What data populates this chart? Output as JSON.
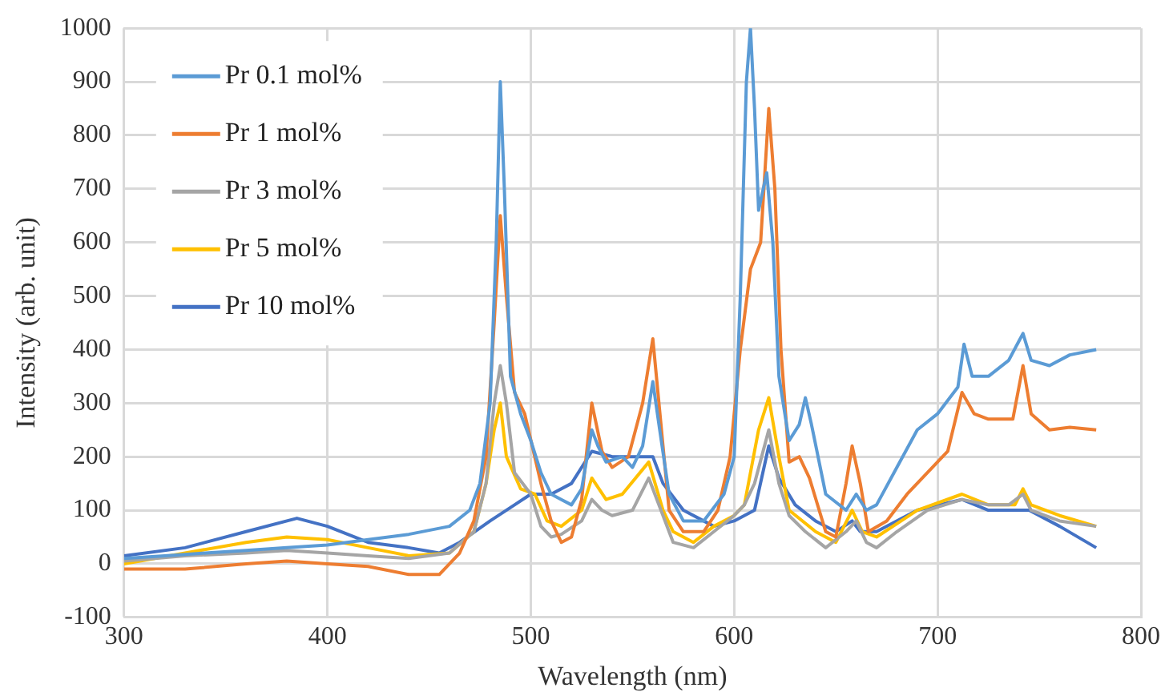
{
  "chart_data": {
    "type": "line",
    "xlabel": "Wavelength (nm)",
    "ylabel": "Intensity (arb. unit)",
    "xlim": [
      300,
      800
    ],
    "xticks": [
      300,
      400,
      500,
      600,
      700,
      800
    ],
    "ylim": [
      -100,
      1000
    ],
    "yticks": [
      -100,
      0,
      100,
      200,
      300,
      400,
      500,
      600,
      700,
      800,
      900,
      1000
    ],
    "grid": true,
    "legend": "top left",
    "marker": "none",
    "line_style": "solid",
    "series": [
      {
        "name": "Pr 0.1 mol%",
        "color": "#5b9bd5",
        "x": [
          300,
          320,
          340,
          360,
          380,
          400,
          420,
          440,
          460,
          470,
          475,
          480,
          483,
          485,
          487,
          490,
          495,
          500,
          505,
          510,
          515,
          520,
          525,
          530,
          533,
          537,
          545,
          550,
          555,
          560,
          563,
          568,
          575,
          585,
          595,
          600,
          603,
          606,
          608,
          610,
          612,
          616,
          619,
          622,
          627,
          632,
          635,
          638,
          645,
          655,
          660,
          665,
          670,
          680,
          690,
          700,
          710,
          713,
          717,
          725,
          735,
          742,
          746,
          755,
          765,
          778
        ],
        "values": [
          10,
          15,
          20,
          25,
          30,
          35,
          45,
          55,
          70,
          100,
          150,
          300,
          600,
          900,
          700,
          350,
          280,
          230,
          170,
          130,
          120,
          110,
          140,
          250,
          220,
          190,
          200,
          180,
          220,
          340,
          260,
          130,
          80,
          80,
          130,
          200,
          500,
          900,
          1000,
          850,
          660,
          730,
          600,
          350,
          230,
          260,
          310,
          260,
          130,
          100,
          130,
          100,
          110,
          180,
          250,
          280,
          330,
          410,
          350,
          350,
          380,
          430,
          380,
          370,
          390,
          400
        ]
      },
      {
        "name": "Pr 1 mol%",
        "color": "#ed7d31",
        "x": [
          300,
          330,
          360,
          380,
          400,
          420,
          440,
          455,
          465,
          472,
          478,
          482,
          485,
          488,
          492,
          497,
          505,
          510,
          515,
          520,
          525,
          530,
          535,
          540,
          548,
          555,
          560,
          563,
          568,
          575,
          585,
          592,
          598,
          603,
          608,
          613,
          617,
          620,
          623,
          627,
          632,
          637,
          645,
          650,
          655,
          658,
          662,
          666,
          675,
          685,
          695,
          705,
          712,
          718,
          725,
          737,
          742,
          746,
          755,
          765,
          778
        ],
        "values": [
          -10,
          -10,
          0,
          5,
          0,
          -5,
          -20,
          -20,
          20,
          80,
          200,
          450,
          650,
          500,
          320,
          280,
          150,
          80,
          40,
          50,
          120,
          300,
          210,
          180,
          200,
          300,
          420,
          300,
          100,
          60,
          60,
          100,
          200,
          400,
          550,
          600,
          850,
          700,
          400,
          190,
          200,
          160,
          60,
          50,
          150,
          220,
          150,
          60,
          80,
          130,
          170,
          210,
          320,
          280,
          270,
          270,
          370,
          280,
          250,
          255,
          250
        ]
      },
      {
        "name": "Pr 3 mol%",
        "color": "#a5a5a5",
        "x": [
          300,
          330,
          360,
          380,
          400,
          420,
          440,
          460,
          472,
          478,
          482,
          485,
          488,
          492,
          500,
          505,
          510,
          515,
          525,
          530,
          535,
          540,
          550,
          558,
          565,
          570,
          580,
          590,
          600,
          605,
          610,
          617,
          622,
          627,
          635,
          645,
          655,
          660,
          665,
          670,
          680,
          695,
          712,
          725,
          735,
          742,
          746,
          760,
          778
        ],
        "values": [
          5,
          15,
          20,
          25,
          20,
          15,
          10,
          20,
          60,
          150,
          300,
          370,
          300,
          170,
          130,
          70,
          50,
          55,
          80,
          120,
          100,
          90,
          100,
          160,
          90,
          40,
          30,
          60,
          90,
          110,
          150,
          250,
          150,
          90,
          60,
          30,
          60,
          80,
          40,
          30,
          60,
          100,
          120,
          110,
          110,
          130,
          100,
          80,
          70
        ]
      },
      {
        "name": "Pr 5 mol%",
        "color": "#ffc000",
        "x": [
          300,
          330,
          360,
          380,
          400,
          420,
          440,
          460,
          472,
          478,
          482,
          485,
          488,
          495,
          502,
          508,
          515,
          525,
          530,
          537,
          545,
          558,
          565,
          570,
          580,
          590,
          600,
          605,
          612,
          617,
          622,
          627,
          640,
          650,
          658,
          663,
          670,
          690,
          712,
          725,
          738,
          742,
          746,
          760,
          778
        ],
        "values": [
          0,
          20,
          40,
          50,
          45,
          30,
          15,
          20,
          60,
          150,
          250,
          300,
          200,
          140,
          130,
          80,
          70,
          100,
          160,
          120,
          130,
          190,
          100,
          60,
          40,
          70,
          90,
          110,
          250,
          310,
          200,
          100,
          60,
          40,
          100,
          60,
          50,
          100,
          130,
          110,
          110,
          140,
          110,
          90,
          70
        ]
      },
      {
        "name": "Pr 10 mol%",
        "color": "#4472c4",
        "x": [
          300,
          330,
          360,
          385,
          400,
          420,
          440,
          455,
          465,
          480,
          492,
          500,
          510,
          520,
          530,
          540,
          550,
          560,
          565,
          575,
          590,
          600,
          610,
          617,
          622,
          630,
          640,
          650,
          658,
          662,
          670,
          690,
          712,
          725,
          740,
          745,
          760,
          778
        ],
        "values": [
          15,
          30,
          60,
          85,
          70,
          40,
          30,
          20,
          40,
          80,
          110,
          130,
          130,
          150,
          210,
          200,
          200,
          200,
          150,
          100,
          70,
          80,
          100,
          220,
          160,
          110,
          80,
          60,
          80,
          60,
          60,
          100,
          120,
          100,
          100,
          100,
          70,
          30
        ]
      }
    ]
  }
}
